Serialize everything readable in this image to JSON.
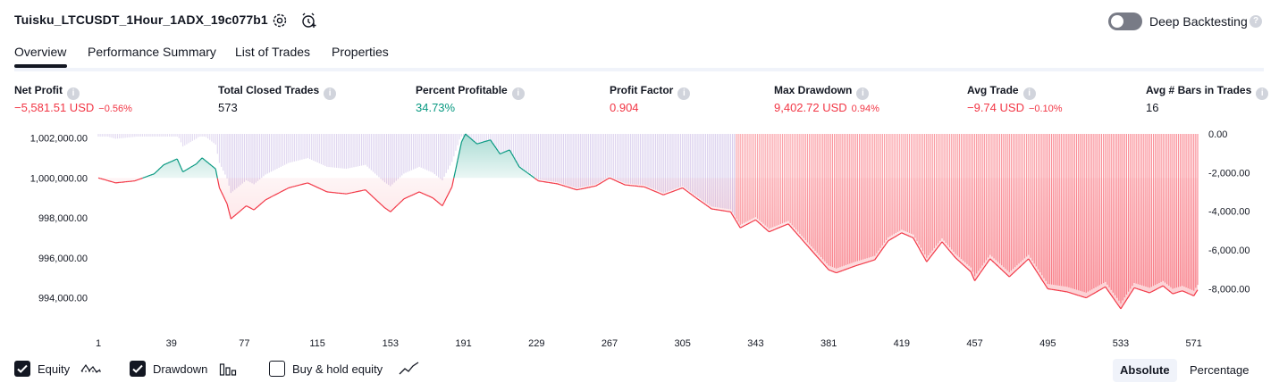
{
  "header": {
    "title": "Tuisku_LTCUSDT_1Hour_1ADX_19c077b1",
    "deep_backtesting_label": "Deep Backtesting",
    "deep_backtesting_enabled": false
  },
  "tabs": [
    {
      "label": "Overview",
      "active": true
    },
    {
      "label": "Performance Summary",
      "active": false
    },
    {
      "label": "List of Trades",
      "active": false
    },
    {
      "label": "Properties",
      "active": false
    }
  ],
  "stats": [
    {
      "label": "Net Profit",
      "value": "−5,581.51 USD",
      "pct": "−0.56%",
      "color": "red"
    },
    {
      "label": "Total Closed Trades",
      "value": "573",
      "pct": "",
      "color": "dark"
    },
    {
      "label": "Percent Profitable",
      "value": "34.73%",
      "pct": "",
      "color": "green"
    },
    {
      "label": "Profit Factor",
      "value": "0.904",
      "pct": "",
      "color": "red"
    },
    {
      "label": "Max Drawdown",
      "value": "9,402.72 USD",
      "pct": "0.94%",
      "color": "red"
    },
    {
      "label": "Avg Trade",
      "value": "−9.74 USD",
      "pct": "−0.10%",
      "color": "red"
    },
    {
      "label": "Avg # Bars in Trades",
      "value": "16",
      "pct": "",
      "color": "dark"
    }
  ],
  "legend": {
    "equity_label": "Equity",
    "equity_checked": true,
    "drawdown_label": "Drawdown",
    "drawdown_checked": true,
    "buyhold_label": "Buy & hold equity",
    "buyhold_checked": false
  },
  "scale_toggle": {
    "absolute": "Absolute",
    "percentage": "Percentage",
    "active": "Absolute"
  },
  "colors": {
    "profit": "#089981",
    "loss": "#f23645",
    "drawdown": "#b39ddb",
    "drawdown_deep": "#f7525f",
    "text": "#131722"
  },
  "chart_data": {
    "type": "line",
    "title": "",
    "left_axis": {
      "ticks": [
        1002000,
        1000000,
        998000,
        996000,
        994000
      ],
      "tick_labels": [
        "1,002,000.00",
        "1,000,000.00",
        "998,000.00",
        "996,000.00",
        "994,000.00"
      ],
      "ylim": [
        993000,
        1002200
      ]
    },
    "right_axis": {
      "ticks": [
        0,
        -2000,
        -4000,
        -6000,
        -8000
      ],
      "tick_labels": [
        "0.00",
        "-2,000.00",
        "-4,000.00",
        "-6,000.00",
        "-8,000.00"
      ],
      "ylim": [
        -9500,
        0
      ]
    },
    "x_ticks": [
      1,
      39,
      77,
      115,
      153,
      191,
      229,
      267,
      305,
      343,
      381,
      419,
      457,
      495,
      533,
      571
    ],
    "xlim": [
      1,
      573
    ],
    "baseline": 1000000,
    "series": [
      {
        "name": "Equity",
        "x": [
          1,
          10,
          20,
          30,
          35,
          42,
          45,
          52,
          55,
          62,
          64,
          68,
          70,
          78,
          82,
          88,
          95,
          100,
          110,
          120,
          130,
          140,
          150,
          153,
          160,
          168,
          175,
          180,
          185,
          190,
          192,
          198,
          205,
          210,
          215,
          220,
          225,
          230,
          240,
          250,
          260,
          267,
          275,
          285,
          295,
          305,
          312,
          320,
          330,
          335,
          343,
          350,
          360,
          370,
          381,
          385,
          395,
          405,
          412,
          419,
          425,
          432,
          440,
          447,
          455,
          457,
          465,
          475,
          485,
          495,
          505,
          515,
          525,
          533,
          540,
          548,
          555,
          560,
          565,
          571,
          573
        ],
        "y": [
          1000000,
          999750,
          999850,
          1000200,
          1000650,
          1000950,
          1000300,
          1000700,
          1001000,
          1000450,
          999500,
          998700,
          997950,
          998600,
          998400,
          998900,
          999250,
          999500,
          999750,
          999300,
          999200,
          999400,
          998500,
          998300,
          998950,
          999300,
          999000,
          998600,
          999550,
          1001800,
          1002200,
          1001700,
          1001900,
          1001200,
          1001400,
          1000550,
          1000200,
          999850,
          999700,
          999400,
          999600,
          1000000,
          999650,
          999550,
          999150,
          999500,
          999000,
          998450,
          998300,
          997500,
          997900,
          997300,
          997700,
          996600,
          995400,
          995250,
          995600,
          995900,
          996850,
          997250,
          997000,
          995800,
          996800,
          996000,
          995300,
          994850,
          995950,
          995050,
          995950,
          994450,
          994300,
          994000,
          994550,
          993450,
          994500,
          994250,
          994600,
          994200,
          994350,
          994100,
          994400
        ]
      },
      {
        "name": "Drawdown",
        "x": [
          1,
          10,
          20,
          30,
          35,
          42,
          45,
          52,
          55,
          62,
          64,
          68,
          70,
          78,
          82,
          88,
          95,
          100,
          110,
          120,
          130,
          140,
          150,
          153,
          160,
          168,
          175,
          180,
          185,
          190,
          192,
          198,
          205,
          210,
          215,
          220,
          225,
          230,
          240,
          250,
          260,
          267,
          275,
          285,
          295,
          305,
          312,
          320,
          330,
          335,
          343,
          350,
          360,
          370,
          381,
          385,
          395,
          405,
          412,
          419,
          425,
          432,
          440,
          447,
          455,
          457,
          465,
          475,
          485,
          495,
          505,
          515,
          525,
          533,
          540,
          548,
          555,
          560,
          565,
          571,
          573
        ],
        "y": [
          0,
          -250,
          -150,
          0,
          0,
          0,
          -650,
          -250,
          0,
          -550,
          -1500,
          -2300,
          -3050,
          -2400,
          -2600,
          -2100,
          -1750,
          -1500,
          -1250,
          -1700,
          -1800,
          -1600,
          -2500,
          -2700,
          -2050,
          -1700,
          -2000,
          -2400,
          -1450,
          0,
          0,
          -500,
          -300,
          -1000,
          -800,
          -1650,
          -2000,
          -2350,
          -2500,
          -2800,
          -2600,
          -2200,
          -2550,
          -2650,
          -3050,
          -2700,
          -3200,
          -3750,
          -3900,
          -4700,
          -4300,
          -4900,
          -4500,
          -5600,
          -6800,
          -6950,
          -6600,
          -6300,
          -5350,
          -4950,
          -5200,
          -6400,
          -5400,
          -6200,
          -6900,
          -7350,
          -6250,
          -7150,
          -6250,
          -7750,
          -7900,
          -8200,
          -7650,
          -8750,
          -7700,
          -7950,
          -7600,
          -8000,
          -7850,
          -8100,
          -7800
        ]
      }
    ]
  }
}
